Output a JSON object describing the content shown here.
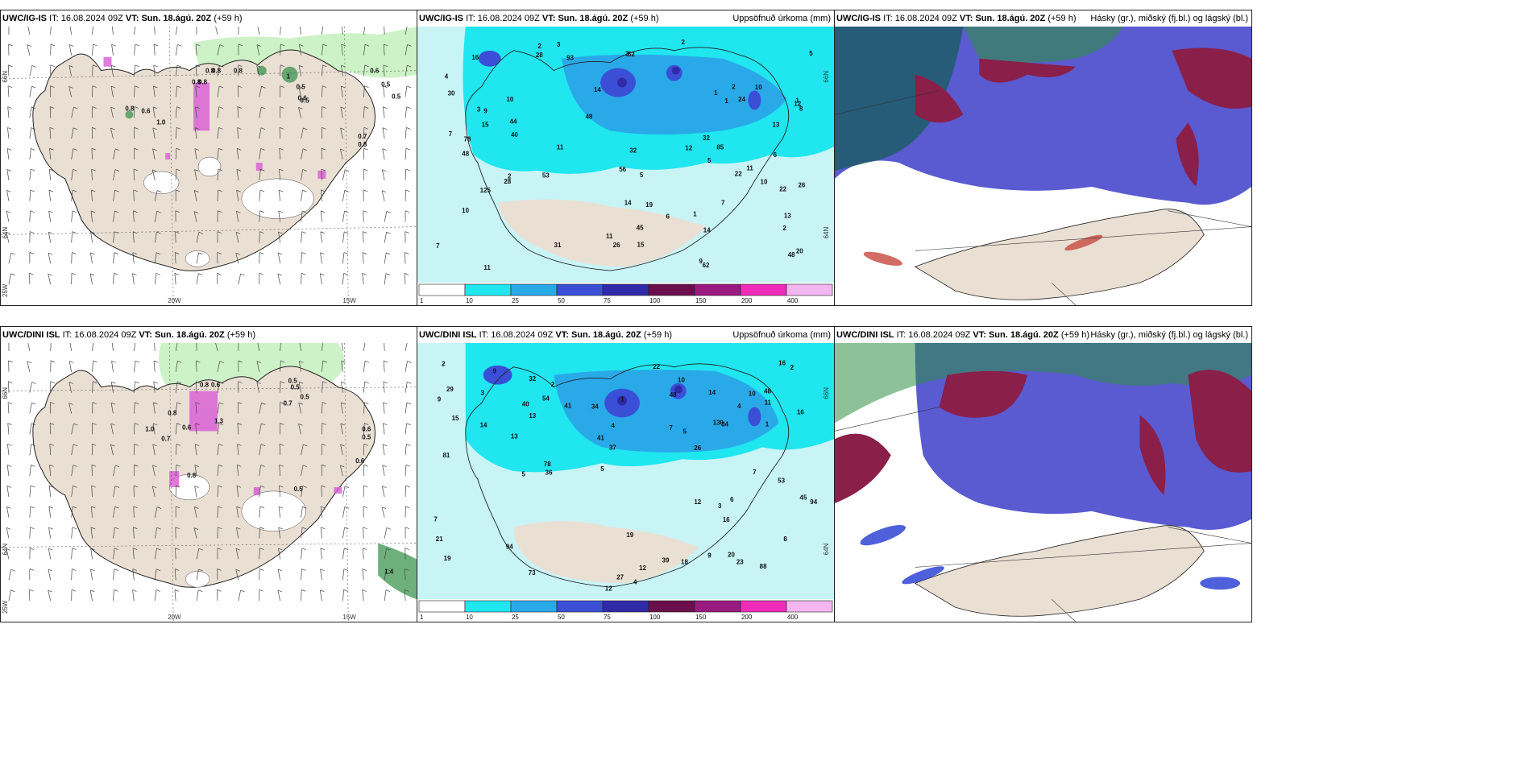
{
  "colors": {
    "land": "#eadfd3",
    "sea_light": "#c8f4f6",
    "green_light": "#cdf2c7",
    "green_mid": "#86d98c",
    "green_dark": "#2f8f45",
    "magenta": "#d95ad6",
    "cyan": "#1fe6ef",
    "blue_mid": "#2aa9e8",
    "blue_dark": "#3b4fd6",
    "navy": "#2e2aa8",
    "purple_dark": "#8a1f49",
    "slate_blue": "#5a5ad1",
    "teal_dark": "#1f5d6a",
    "rust": "#c9544a"
  },
  "panels": [
    {
      "id": "top-left",
      "model": "UWC/IG-IS",
      "it_label": "IT:",
      "it_value": "16.08.2024 09Z",
      "vt_label": "VT:",
      "vt_value": "Sun. 18.ágú. 20Z",
      "lead": "(+59 h)",
      "right_title": "",
      "axis": {
        "left_top": "66N",
        "left_mid": "64N",
        "left_bottom": "25W",
        "bottom_1": "20W",
        "bottom_2": "15W"
      },
      "values": [
        "0.6",
        "0.8",
        "0.8",
        "0.8",
        "0.8",
        "0.8",
        "0.6",
        "0.5",
        "0.5",
        "0.5",
        "1",
        "0.8",
        "0.6",
        "0.7",
        "0.8",
        "1.0",
        "0.5"
      ]
    },
    {
      "id": "top-middle",
      "model": "UWC/IG-IS",
      "it_label": "IT:",
      "it_value": "16.08.2024 09Z",
      "vt_label": "VT:",
      "vt_value": "Sun. 18.ágú. 20Z",
      "lead": "(+59 h)",
      "right_title": "Uppsöfnuð úrkoma (mm)",
      "axis": {
        "right_top": "66N",
        "right_mid": "64N"
      },
      "values": [
        "13",
        "10",
        "10",
        "13",
        "14",
        "9",
        "8",
        "2",
        "5",
        "26",
        "52",
        "32",
        "85",
        "62",
        "45",
        "15",
        "125",
        "93",
        "48",
        "78",
        "56",
        "32",
        "22",
        "53",
        "44",
        "26",
        "48",
        "31",
        "19",
        "28",
        "40",
        "30",
        "12",
        "10",
        "5",
        "14",
        "6",
        "20",
        "22",
        "24",
        "10",
        "15",
        "16",
        "48",
        "28",
        "11",
        "2",
        "11",
        "3",
        "4",
        "7",
        "2",
        "5",
        "1",
        "1",
        "3",
        "1",
        "7",
        "6",
        "11",
        "12",
        "14",
        "9",
        "7",
        "2",
        "11",
        "3",
        "1",
        "2"
      ],
      "colorbar": [
        "1",
        "10",
        "25",
        "50",
        "75",
        "100",
        "150",
        "200",
        "400"
      ]
    },
    {
      "id": "top-right",
      "model": "UWC/IG-IS",
      "it_label": "IT:",
      "it_value": "16.08.2024 09Z",
      "vt_label": "VT:",
      "vt_value": "Sun. 18.ágú. 20Z",
      "lead": "(+59 h)",
      "right_title": "Hásky (gr.), miðský (fj.bl.) og lágský (bl.)"
    },
    {
      "id": "bottom-left",
      "model": "UWC/DINI ISL",
      "it_label": "IT:",
      "it_value": "16.08.2024 09Z",
      "vt_label": "VT:",
      "vt_value": "Sun. 18.ágú. 20Z",
      "lead": "(+59 h)",
      "right_title": "",
      "axis": {
        "left_top": "66N",
        "left_mid": "64N",
        "left_bottom": "25W",
        "bottom_1": "20W",
        "bottom_2": "15W"
      },
      "values": [
        "0.5",
        "0.5",
        "0.6",
        "0.8",
        "0.8",
        "1.3",
        "1.0",
        "0.7",
        "0.6",
        "0.5",
        "0.8",
        "0.5",
        "0.6",
        "0.5",
        "1.4",
        "0.7",
        "0.6"
      ]
    },
    {
      "id": "bottom-middle",
      "model": "UWC/DINI ISL",
      "it_label": "IT:",
      "it_value": "16.08.2024 09Z",
      "vt_label": "VT:",
      "vt_value": "Sun. 18.ágú. 20Z",
      "lead": "(+59 h)",
      "right_title": "Uppsöfnuð úrkoma (mm)",
      "axis": {
        "right_top": "66N",
        "right_mid": "64N"
      },
      "values": [
        "15",
        "13",
        "26",
        "27",
        "10",
        "12",
        "12",
        "36",
        "48",
        "94",
        "45",
        "54",
        "130",
        "94",
        "81",
        "73",
        "78",
        "34",
        "88",
        "39",
        "23",
        "53",
        "37",
        "19",
        "14",
        "13",
        "11",
        "10",
        "9",
        "5",
        "7",
        "18",
        "16",
        "14",
        "29",
        "32",
        "41",
        "48",
        "22",
        "21",
        "34",
        "40",
        "41",
        "20",
        "12",
        "16",
        "9",
        "7",
        "8",
        "6",
        "4",
        "5",
        "5",
        "3",
        "1",
        "2",
        "19",
        "16",
        "9",
        "7",
        "4",
        "2",
        "1",
        "2",
        "4",
        "3"
      ],
      "colorbar": [
        "1",
        "10",
        "25",
        "50",
        "75",
        "100",
        "150",
        "200",
        "400"
      ]
    },
    {
      "id": "bottom-right",
      "model": "UWC/DINI ISL",
      "it_label": "IT:",
      "it_value": "16.08.2024 09Z",
      "vt_label": "VT:",
      "vt_value": "Sun. 18.ágú. 20Z",
      "lead": "(+59 h)",
      "right_title": "Hásky (gr.), miðský (fj.bl.) og lágský (bl.)"
    }
  ]
}
